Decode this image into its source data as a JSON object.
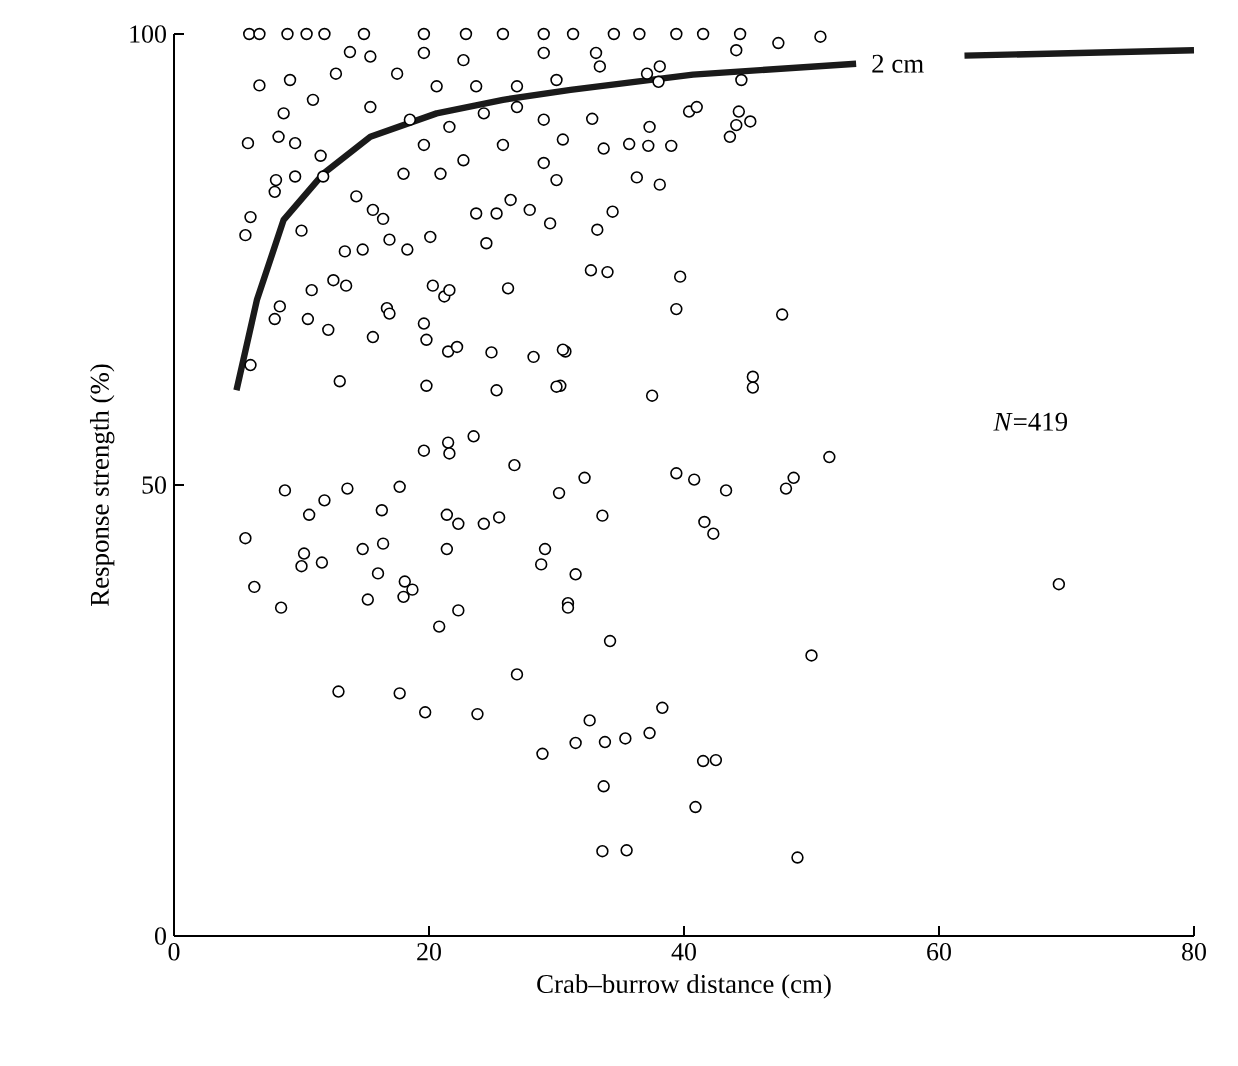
{
  "chart_data": {
    "type": "scatter",
    "xlabel": "Crab–burrow distance (cm)",
    "ylabel": "Response strength (%)",
    "xlim": [
      0,
      80
    ],
    "ylim": [
      0,
      100
    ],
    "xticks": [
      0,
      20,
      40,
      60,
      80
    ],
    "yticks": [
      0,
      50,
      100
    ],
    "marker": "circle",
    "annotations": [
      "*N*=419"
    ],
    "series": [
      {
        "color": "#000000",
        "x": [
          5.6,
          6.3,
          8.4,
          8.7,
          10.6,
          11.8,
          13.6,
          10.2,
          10.0,
          11.6,
          14.8,
          16.3,
          17.7,
          16.4,
          16.0,
          15.2,
          18.1,
          18.7,
          18.0,
          19.6,
          21.5,
          21.6,
          23.5,
          26.7,
          21.4,
          22.3,
          24.3,
          25.5,
          21.4,
          20.8,
          22.3,
          30.2,
          32.2,
          33.6,
          29.1,
          28.8,
          31.5,
          30.9,
          30.9,
          34.2,
          12.9,
          17.7,
          19.7,
          23.8,
          26.9,
          28.9,
          31.5,
          32.6,
          33.8,
          35.4,
          37.3,
          38.3,
          33.7,
          33.6,
          35.5,
          39.4,
          40.8,
          43.3,
          48.0,
          48.6,
          51.4,
          41.6,
          42.3,
          69.4,
          50.0,
          41.5,
          42.5,
          40.9,
          48.9,
          50.7,
          47.4,
          44.4,
          44.1,
          40.4,
          41.0,
          44.3,
          45.2,
          44.1,
          43.6,
          37.3,
          32.8,
          35.7,
          37.2,
          39.0,
          33.7,
          36.3,
          38.1,
          34.4,
          33.2,
          32.7,
          34.0,
          39.7,
          39.4,
          47.7,
          45.4,
          45.4,
          37.5,
          30.7,
          30.3,
          44.5,
          38.0,
          33.4,
          33.1,
          5.9,
          6.7,
          8.9,
          10.4,
          11.8,
          14.9,
          19.6,
          22.9,
          25.8,
          29.0,
          6.7,
          9.1,
          5.8,
          6.0,
          5.6,
          6.0,
          8.0,
          9.5,
          7.9,
          8.2,
          9.5,
          8.6,
          10.9,
          12.7,
          13.8,
          11.5,
          11.7,
          10.0,
          10.8,
          8.3,
          7.9,
          10.5,
          12.1,
          12.5,
          13.5,
          13.0,
          14.3,
          15.6,
          16.4,
          16.9,
          18.3,
          13.4,
          14.8,
          20.1,
          20.3,
          21.2,
          21.6,
          16.7,
          16.9,
          19.6,
          15.6,
          19.8,
          21.5,
          22.2,
          19.8,
          24.9,
          25.3,
          26.2,
          24.5,
          23.7,
          25.3,
          26.4,
          27.9,
          29.5,
          28.2,
          30.0,
          30.5,
          20.9,
          18.0,
          19.6,
          22.7,
          25.8,
          29.0,
          30.0,
          15.4,
          18.5,
          21.6,
          24.3,
          26.9,
          29.0,
          30.5,
          20.6,
          23.7,
          26.9,
          17.5,
          15.4,
          19.6,
          22.7,
          29.0,
          30.0,
          31.3,
          34.5,
          36.5,
          39.4,
          41.5,
          38.1,
          37.1
        ],
        "values": [
          44.1,
          38.7,
          36.4,
          49.4,
          46.7,
          48.3,
          49.6,
          42.4,
          41.0,
          41.4,
          42.9,
          47.2,
          49.8,
          43.5,
          40.2,
          37.3,
          39.3,
          38.4,
          37.6,
          53.8,
          54.7,
          53.5,
          55.4,
          52.2,
          46.7,
          45.7,
          45.7,
          46.4,
          42.9,
          34.3,
          36.1,
          49.1,
          50.8,
          46.6,
          42.9,
          41.2,
          40.1,
          36.9,
          36.4,
          32.7,
          27.1,
          26.9,
          24.8,
          24.6,
          29.0,
          20.2,
          21.4,
          23.9,
          21.5,
          21.9,
          22.5,
          25.3,
          16.6,
          9.4,
          9.5,
          51.3,
          50.6,
          49.4,
          49.6,
          50.8,
          53.1,
          45.9,
          44.6,
          39.0,
          31.1,
          19.4,
          19.5,
          14.3,
          8.7,
          99.7,
          99.0,
          100,
          98.2,
          91.4,
          91.9,
          91.4,
          90.3,
          89.9,
          88.6,
          89.7,
          90.6,
          87.8,
          87.6,
          87.6,
          87.3,
          84.1,
          83.3,
          80.3,
          78.3,
          73.8,
          73.6,
          73.1,
          69.5,
          68.9,
          62.0,
          60.8,
          59.9,
          64.8,
          61.0,
          94.9,
          94.7,
          96.4,
          97.9,
          100,
          100,
          100,
          100,
          100,
          100,
          100,
          100,
          100,
          100,
          94.3,
          94.9,
          87.9,
          79.7,
          77.7,
          63.3,
          83.8,
          84.2,
          82.5,
          88.6,
          87.9,
          91.2,
          92.7,
          95.6,
          98.0,
          86.5,
          84.2,
          78.2,
          71.6,
          69.8,
          68.4,
          68.4,
          67.2,
          72.7,
          72.1,
          61.5,
          82.0,
          80.5,
          79.5,
          77.2,
          76.1,
          75.9,
          76.1,
          77.5,
          72.1,
          70.9,
          71.6,
          69.6,
          69.0,
          67.9,
          66.4,
          66.1,
          64.8,
          65.3,
          61.0,
          64.7,
          60.5,
          71.8,
          76.8,
          80.1,
          80.1,
          81.6,
          80.5,
          79.0,
          64.2,
          60.9,
          65.0,
          84.5,
          84.5,
          87.7,
          86.0,
          87.7,
          85.7,
          83.8,
          91.9,
          90.5,
          89.7,
          91.2,
          91.9,
          90.5,
          88.3,
          94.2,
          94.2,
          94.2,
          95.6,
          97.5,
          97.9,
          97.1,
          97.9,
          94.9,
          100,
          100,
          100,
          100,
          100,
          96.4,
          95.6
        ]
      },
      {
        "type": "line",
        "name": "2 cm",
        "color": "#1a1a1a",
        "marker": "none",
        "line_style": "solid",
        "x": [
          4.9,
          6.5,
          8.6,
          11.7,
          15.4,
          20.6,
          25.8,
          31.1,
          40.7,
          53.5,
          57.5,
          62.0,
          80.0
        ],
        "values": [
          60.5,
          70.5,
          79.4,
          84.5,
          88.6,
          91.2,
          92.7,
          93.8,
          95.5,
          96.7,
          null,
          97.6,
          98.2
        ]
      }
    ]
  }
}
